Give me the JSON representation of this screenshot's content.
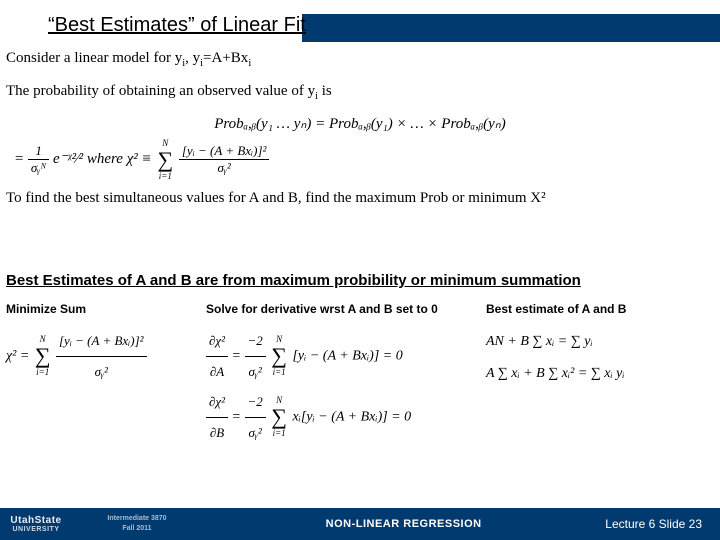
{
  "title": "“Best Estimates” of Linear Fit",
  "body": {
    "line1_a": "Consider a linear model for y",
    "line1_sub": "i",
    "line1_b": ",    y",
    "line1_c": "=A+Bx",
    "line2_a": "The probability of obtaining an observed value of y",
    "line2_sub": "i",
    "line2_b": " is",
    "eq1": "Probₐ,ᵦ(y₁ … yₙ) = Probₐ,ᵦ(y₁) × … × Probₐ,ᵦ(yₙ)",
    "eq2_lead": "= ",
    "eq2_frac_num": "1",
    "eq2_frac_den": "σᵧᴺ",
    "eq2_mid": " e⁻ᵡ²⁄²   where  χ² ≡ ",
    "eq2_sum_top": "N",
    "eq2_sum_bot": "i=1",
    "eq2_frac2_num": "[yᵢ − (A + Bxᵢ)]²",
    "eq2_frac2_den": "σᵧ²",
    "line3": "To find the best simultaneous values for A and B, find the maximum Prob or minimum X²"
  },
  "statement": "Best Estimates of A and B are from maximum probibility or minimum summation",
  "columns": {
    "col1": {
      "head": "Minimize Sum",
      "eq_lead": "χ² = ",
      "sum_top": "N",
      "sum_bot": "i=1",
      "frac_num": "[yᵢ − (A + Bxᵢ)]²",
      "frac_den": "σᵧ²"
    },
    "col2": {
      "head": "Solve for derivative wrst A and B set to 0",
      "rowA_lhs_num": "∂χ²",
      "rowA_lhs_den": "∂A",
      "rowA_mid": " = ",
      "rowA_coef_num": "−2",
      "rowA_coef_den": "σᵧ²",
      "rowA_sum_top": "N",
      "rowA_sum_bot": "i=1",
      "rowA_tail": "[yᵢ − (A + Bxᵢ)] = 0",
      "rowB_lhs_num": "∂χ²",
      "rowB_lhs_den": "∂B",
      "rowB_mid": " = ",
      "rowB_coef_num": "−2",
      "rowB_coef_den": "σᵧ²",
      "rowB_sum_top": "N",
      "rowB_sum_bot": "i=1",
      "rowB_tail": "xᵢ[yᵢ − (A + Bxᵢ)] = 0"
    },
    "col3": {
      "head": "Best estimate of A and B",
      "rowA": "AN + B ∑ xᵢ = ∑ yᵢ",
      "rowB": "A ∑ xᵢ + B ∑ xᵢ² = ∑ xᵢ yᵢ"
    }
  },
  "footer": {
    "logo_top": "UtahState",
    "logo_bot": "UNIVERSITY",
    "course_line1": "Intermediate 3870",
    "course_line2": "Fall 2011",
    "center": "NON-LINEAR REGRESSION",
    "right": "Lecture 6  Slide 23"
  },
  "colors": {
    "bar": "#003a6f",
    "text": "#000000",
    "footer_text": "#ffffff"
  }
}
